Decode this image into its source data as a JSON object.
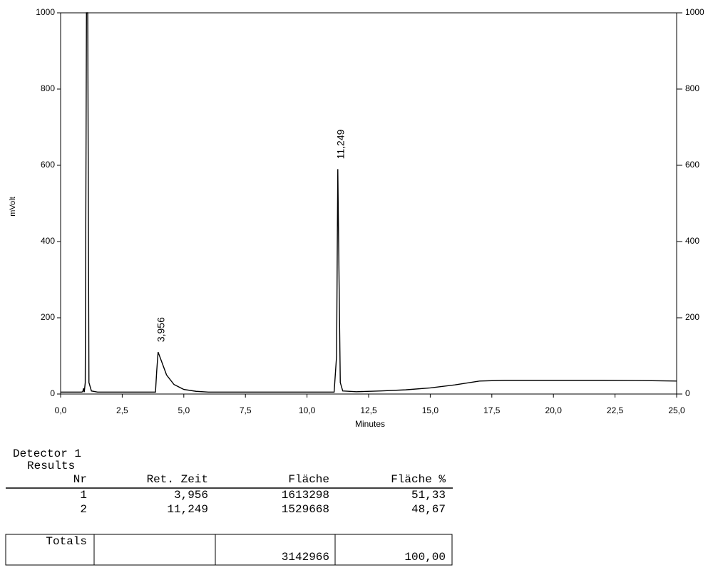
{
  "chart_data": {
    "type": "line",
    "x_label": "Minutes",
    "y_label": "mVolt",
    "color": "#000000",
    "x": [
      0,
      0.85,
      0.9,
      0.93,
      0.96,
      1.0,
      1.05,
      1.1,
      1.15,
      1.25,
      1.5,
      3.85,
      3.9,
      3.956,
      4.1,
      4.3,
      4.6,
      5.0,
      5.5,
      6.0,
      11.1,
      11.2,
      11.249,
      11.3,
      11.35,
      11.45,
      12.0,
      13.0,
      14.0,
      15.0,
      16.0,
      17.0,
      18.0,
      20.0,
      22.0,
      24.0,
      25.0
    ],
    "values": [
      5,
      5,
      6,
      15,
      5,
      30,
      1000,
      1000,
      30,
      8,
      5,
      5,
      60,
      110,
      85,
      50,
      25,
      12,
      7,
      5,
      5,
      100,
      590,
      300,
      30,
      8,
      6,
      8,
      11,
      16,
      24,
      34,
      36,
      36,
      36,
      35,
      34
    ],
    "xlim": [
      0,
      25
    ],
    "xticks": [
      {
        "value": 0,
        "label": "0,0"
      },
      {
        "value": 2.5,
        "label": "2,5"
      },
      {
        "value": 5,
        "label": "5,0"
      },
      {
        "value": 7.5,
        "label": "7,5"
      },
      {
        "value": 10,
        "label": "10,0"
      },
      {
        "value": 12.5,
        "label": "12,5"
      },
      {
        "value": 15,
        "label": "15,0"
      },
      {
        "value": 17.5,
        "label": "17,5"
      },
      {
        "value": 20,
        "label": "20,0"
      },
      {
        "value": 22.5,
        "label": "22,5"
      },
      {
        "value": 25,
        "label": "25,0"
      }
    ],
    "ylim": [
      0,
      1000
    ],
    "yticks": [
      0,
      200,
      400,
      600,
      800,
      1000
    ],
    "y2lim": [
      0,
      1000
    ],
    "y2ticks": [
      0,
      200,
      400,
      600,
      800,
      1000
    ],
    "annotations": [
      {
        "text": "3,956",
        "x": 3.956,
        "y": 110
      },
      {
        "text": "11,249",
        "x": 11.249,
        "y": 590
      }
    ]
  },
  "table": {
    "detector": "Detector 1",
    "title": "Results",
    "header": [
      "Nr",
      "Ret. Zeit",
      "Fläche",
      "Fläche %"
    ],
    "rows": [
      [
        "1",
        "3,956",
        "1613298",
        "51,33"
      ],
      [
        "2",
        "11,249",
        "1529668",
        "48,67"
      ]
    ],
    "totals": {
      "label": "Totals",
      "area": "3142966",
      "percent": "100,00"
    }
  }
}
